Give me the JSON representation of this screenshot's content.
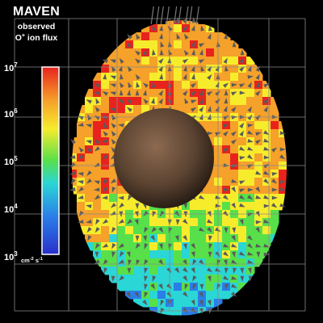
{
  "title": "MAVEN",
  "subtitle_line1": "observed",
  "subtitle_line2_species": "O",
  "subtitle_line2_charge": "+",
  "subtitle_line2_rest": " ion flux",
  "colorbar": {
    "scale": "log",
    "range": [
      1000,
      10000000
    ],
    "ticks": [
      {
        "base": "10",
        "exp": "7"
      },
      {
        "base": "10",
        "exp": "6"
      },
      {
        "base": "10",
        "exp": "5"
      },
      {
        "base": "10",
        "exp": "4"
      },
      {
        "base": "10",
        "exp": "3"
      }
    ],
    "unit_base": "cm",
    "unit_exp": "-2",
    "unit_rest": " s",
    "unit_exp2": "-1",
    "colors": [
      "#e8231e",
      "#f5a12a",
      "#f7ec2c",
      "#57e04a",
      "#2ad6d6",
      "#2a7ee8",
      "#2a2fcb"
    ]
  },
  "background_color": "#000000",
  "grid_color": "#8a8a8a",
  "planet_color": "#6b5240",
  "arrow_color": "#5a5a5a"
}
